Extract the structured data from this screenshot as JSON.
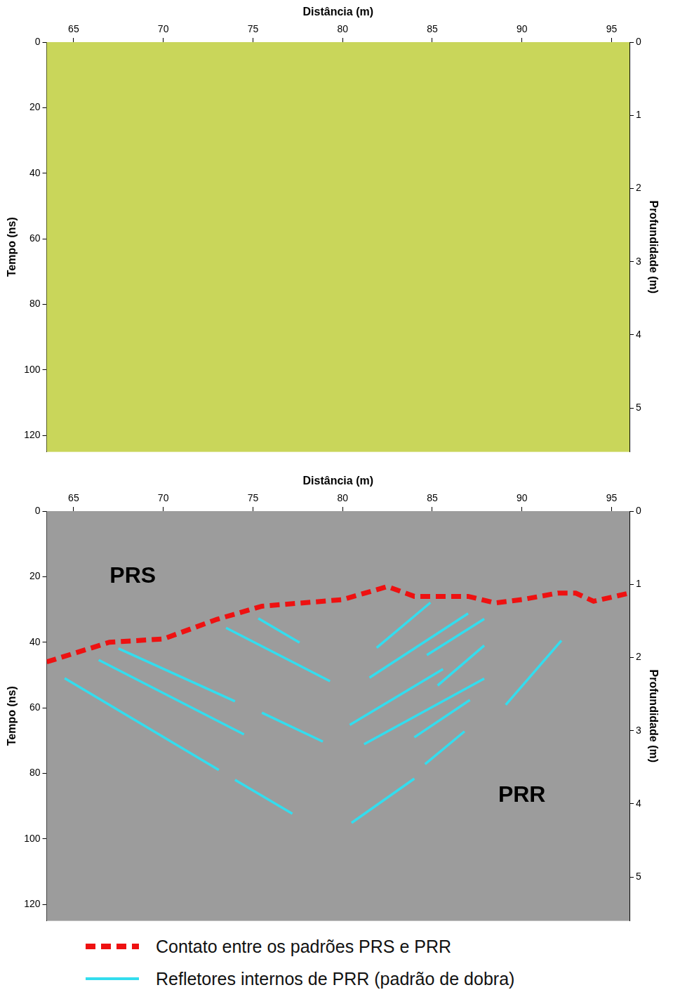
{
  "chart_data": [
    {
      "type": "line",
      "x_label": "Distância (m)",
      "y_label": "Tempo (ns)",
      "y2_label": "Profundidade (m)",
      "xlim": [
        63.5,
        96
      ],
      "xticks": [
        65,
        70,
        75,
        80,
        85,
        90,
        95
      ],
      "ylim": [
        0,
        125
      ],
      "yticks": [
        0,
        20,
        40,
        60,
        80,
        100,
        120
      ],
      "y2lim": [
        0,
        5.6
      ],
      "y2ticks": [
        0,
        1,
        2,
        3,
        4,
        5
      ],
      "grid": false,
      "color": "#c9d65a",
      "series": [],
      "annotations": []
    },
    {
      "type": "line",
      "x_label": "Distância (m)",
      "y_label": "Tempo (ns)",
      "y2_label": "Profundidade (m)",
      "xlim": [
        63.5,
        96
      ],
      "xticks": [
        65,
        70,
        75,
        80,
        85,
        90,
        95
      ],
      "ylim": [
        0,
        125
      ],
      "yticks": [
        0,
        20,
        40,
        60,
        80,
        100,
        120
      ],
      "y2lim": [
        0,
        5.6
      ],
      "y2ticks": [
        0,
        1,
        2,
        3,
        4,
        5
      ],
      "grid": false,
      "color": "#9c9c9c",
      "legend": "bottom",
      "series": [
        {
          "name": "Contato entre os padrões PRS e PRR",
          "color": "#ee1111",
          "line_style": "dashed",
          "x": [
            63.5,
            67,
            70,
            73,
            75.5,
            80,
            82.5,
            84,
            87,
            88.5,
            90,
            92,
            93,
            94,
            96
          ],
          "values": [
            46,
            40,
            39,
            33,
            29,
            27,
            23,
            26,
            26,
            28,
            27,
            25,
            25,
            27.5,
            25
          ]
        },
        {
          "name": "Refletores internos de PRR (padrão de dobra)",
          "color": "#33ddee",
          "line_style": "solid",
          "x": [
            64.5,
            73.1,
            73.1,
            74.0,
            77.2,
            77.2,
            66.4,
            74.5,
            74.5,
            67.5,
            74.0,
            74.0,
            73.5,
            79.3,
            79.3,
            75.3,
            77.6,
            77.6,
            75.5,
            78.9,
            78.9,
            80.5,
            84.0,
            84.0,
            84.6,
            86.8,
            86.8,
            81.9,
            84.9,
            84.9,
            81.5,
            87.0,
            87.0,
            80.4,
            85.6,
            85.6,
            84.7,
            87.9,
            87.9,
            81.2,
            87.9,
            87.9,
            84.0,
            87.1,
            87.1,
            85.3,
            87.9,
            87.9,
            89.1,
            92.2
          ],
          "values": [
            51,
            79,
            null,
            82,
            92.3,
            null,
            45.4,
            68.1,
            null,
            41.9,
            58,
            null,
            35.6,
            51.9,
            null,
            32.7,
            40.1,
            null,
            61.5,
            70.3,
            null,
            95.1,
            81.6,
            null,
            77.2,
            67.2,
            null,
            41.7,
            27.9,
            null,
            50.8,
            31.2,
            null,
            65.2,
            48.2,
            null,
            43.9,
            32.9,
            null,
            71.1,
            51.1,
            null,
            69,
            57.6,
            null,
            53.2,
            41,
            null,
            59.1,
            39.5
          ]
        }
      ],
      "annotations": [
        {
          "text": "PRS",
          "x": 68.3,
          "y": 19.9
        },
        {
          "text": "PRR",
          "x": 90.0,
          "y": 86.8
        }
      ]
    }
  ]
}
